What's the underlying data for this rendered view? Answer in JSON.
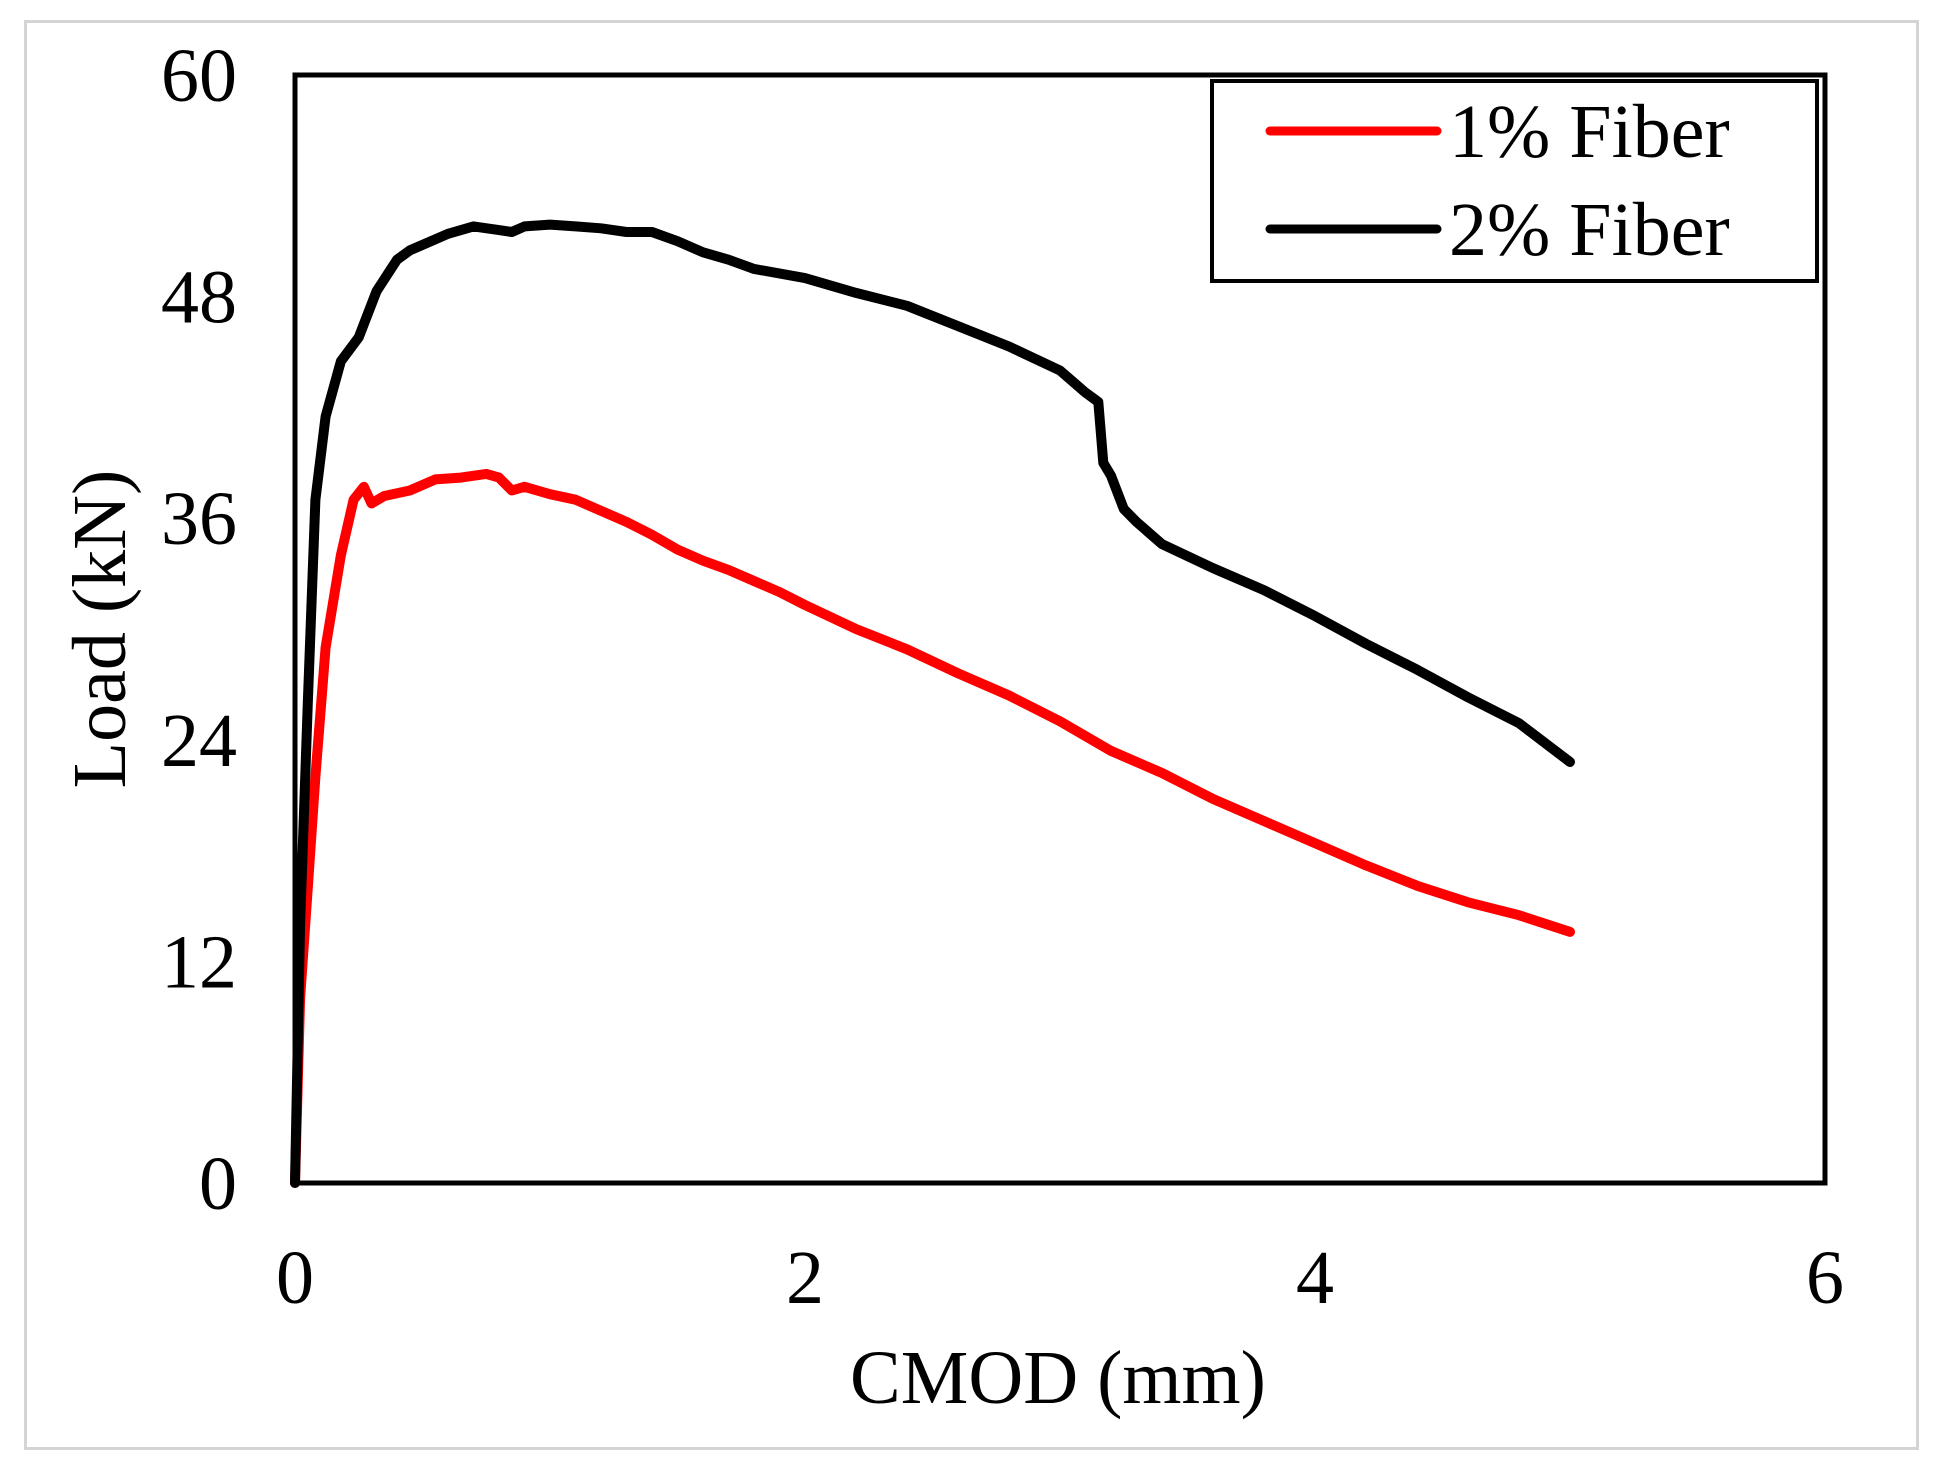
{
  "chart_data": {
    "type": "line",
    "title": "",
    "xlabel": "CMOD (mm)",
    "ylabel": "Load (kN)",
    "xlim": [
      0,
      6
    ],
    "ylim": [
      0,
      60
    ],
    "xticks": [
      0,
      2,
      4,
      6
    ],
    "xtick_labels": [
      "0",
      "2",
      "4",
      "6"
    ],
    "yticks": [
      0,
      12,
      24,
      36,
      48,
      60
    ],
    "ytick_labels": [
      "0",
      "12",
      "24",
      "36",
      "48",
      "60"
    ],
    "grid": false,
    "legend_position": "top-right",
    "series": [
      {
        "name": "1% Fiber",
        "color": "#ff0000",
        "x": [
          0,
          0.02,
          0.05,
          0.08,
          0.12,
          0.18,
          0.23,
          0.27,
          0.3,
          0.35,
          0.45,
          0.55,
          0.65,
          0.75,
          0.8,
          0.85,
          0.9,
          1.0,
          1.1,
          1.2,
          1.3,
          1.4,
          1.5,
          1.6,
          1.7,
          1.8,
          1.9,
          2.0,
          2.2,
          2.4,
          2.6,
          2.8,
          3.0,
          3.2,
          3.4,
          3.6,
          3.8,
          4.0,
          4.2,
          4.4,
          4.6,
          4.8,
          5.0
        ],
        "y": [
          0,
          10,
          16,
          22,
          29,
          34,
          37,
          37.7,
          36.8,
          37.2,
          37.5,
          38.1,
          38.2,
          38.4,
          38.2,
          37.5,
          37.7,
          37.3,
          37,
          36.4,
          35.8,
          35.1,
          34.3,
          33.7,
          33.2,
          32.6,
          32.0,
          31.3,
          30.0,
          28.9,
          27.6,
          26.4,
          25.0,
          23.4,
          22.2,
          20.8,
          19.6,
          18.4,
          17.2,
          16.1,
          15.2,
          14.5,
          13.6
        ]
      },
      {
        "name": "2% Fiber",
        "color": "#000000",
        "x": [
          0,
          0.02,
          0.05,
          0.08,
          0.12,
          0.18,
          0.25,
          0.32,
          0.4,
          0.45,
          0.5,
          0.6,
          0.7,
          0.8,
          0.85,
          0.9,
          1.0,
          1.1,
          1.2,
          1.3,
          1.4,
          1.5,
          1.6,
          1.7,
          1.8,
          2.0,
          2.2,
          2.4,
          2.6,
          2.8,
          3.0,
          3.1,
          3.15,
          3.17,
          3.2,
          3.25,
          3.3,
          3.4,
          3.6,
          3.8,
          4.0,
          4.2,
          4.4,
          4.6,
          4.8,
          5.0
        ],
        "y": [
          0,
          14,
          26,
          37,
          41.5,
          44.5,
          45.8,
          48.3,
          50.0,
          50.5,
          50.8,
          51.4,
          51.8,
          51.6,
          51.5,
          51.8,
          51.9,
          51.8,
          51.7,
          51.5,
          51.5,
          51.0,
          50.4,
          50.0,
          49.5,
          49.0,
          48.2,
          47.5,
          46.4,
          45.3,
          44.0,
          42.8,
          42.3,
          39.0,
          38.3,
          36.5,
          35.8,
          34.6,
          33.3,
          32.1,
          30.7,
          29.2,
          27.8,
          26.3,
          24.9,
          22.8
        ]
      }
    ]
  }
}
